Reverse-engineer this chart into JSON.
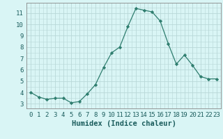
{
  "x": [
    0,
    1,
    2,
    3,
    4,
    5,
    6,
    7,
    8,
    9,
    10,
    11,
    12,
    13,
    14,
    15,
    16,
    17,
    18,
    19,
    20,
    21,
    22,
    23
  ],
  "y": [
    4.0,
    3.6,
    3.4,
    3.5,
    3.5,
    3.1,
    3.2,
    3.9,
    4.7,
    6.2,
    7.5,
    8.0,
    9.8,
    11.4,
    11.25,
    11.1,
    10.3,
    8.3,
    6.5,
    7.3,
    6.4,
    5.4,
    5.2,
    5.2
  ],
  "line_color": "#2e7d6e",
  "marker": "D",
  "marker_size": 2.2,
  "bg_color": "#d9f5f5",
  "grid_color": "#b8d8d8",
  "xlabel": "Humidex (Indice chaleur)",
  "xlabel_fontsize": 7.5,
  "ylabel_ticks": [
    3,
    4,
    5,
    6,
    7,
    8,
    9,
    10,
    11
  ],
  "xlim": [
    -0.5,
    23.5
  ],
  "ylim": [
    2.6,
    11.9
  ],
  "tick_fontsize": 6.5,
  "linewidth": 0.9
}
